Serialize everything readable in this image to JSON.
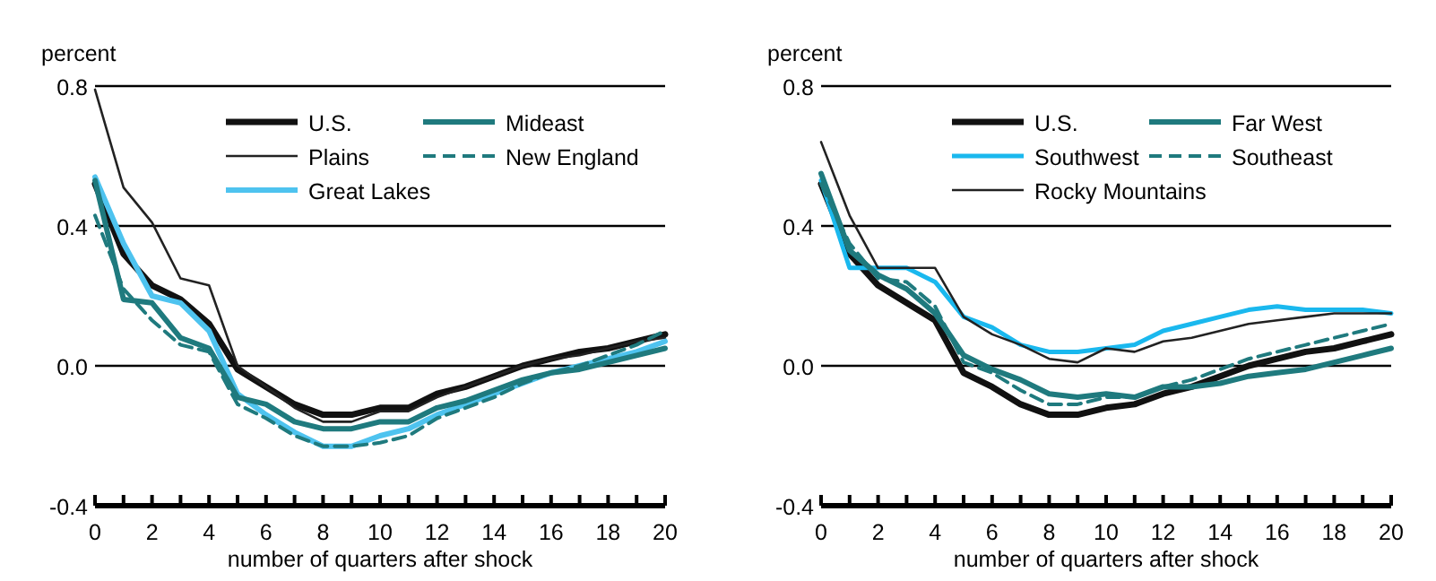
{
  "chart_data": [
    {
      "type": "line",
      "ylabel": "percent",
      "xlabel": "number of quarters after shock",
      "x": [
        0,
        1,
        2,
        3,
        4,
        5,
        6,
        7,
        8,
        9,
        10,
        11,
        12,
        13,
        14,
        15,
        16,
        17,
        18,
        19,
        20
      ],
      "xlim": [
        0,
        20
      ],
      "xticks": [
        0,
        {
          "value": 1,
          "label": null
        },
        2,
        {
          "value": 3,
          "label": null
        },
        4,
        {
          "value": 5,
          "label": null
        },
        6,
        {
          "value": 7,
          "label": null
        },
        8,
        {
          "value": 9,
          "label": null
        },
        10,
        {
          "value": 11,
          "label": null
        },
        12,
        {
          "value": 13,
          "label": null
        },
        14,
        {
          "value": 15,
          "label": null
        },
        16,
        {
          "value": 17,
          "label": null
        },
        18,
        {
          "value": 19,
          "label": null
        },
        20
      ],
      "ylim": [
        -0.4,
        0.8
      ],
      "yticks": [
        {
          "value": -0.4,
          "label": "-0.4"
        },
        {
          "value": 0,
          "label": "0.0"
        },
        {
          "value": 0.4,
          "label": "0.4"
        },
        {
          "value": 0.8,
          "label": "0.8"
        }
      ],
      "grid": "y",
      "legend": "top right",
      "series": [
        {
          "name": "U.S.",
          "color": "#111111",
          "values": [
            0.52,
            0.32,
            0.23,
            0.19,
            0.12,
            -0.01,
            -0.06,
            -0.11,
            -0.14,
            -0.14,
            -0.12,
            -0.12,
            -0.08,
            -0.06,
            -0.03,
            0.0,
            0.02,
            0.04,
            0.05,
            0.07,
            0.09
          ]
        },
        {
          "name": "Plains",
          "color": "#222222",
          "values": [
            0.79,
            0.51,
            0.41,
            0.25,
            0.23,
            0.0,
            -0.06,
            -0.12,
            -0.16,
            -0.16,
            -0.13,
            -0.13,
            -0.09,
            -0.06,
            -0.03,
            0.0,
            0.02,
            0.03,
            0.05,
            0.07,
            0.08
          ]
        },
        {
          "name": "Great Lakes",
          "color": "#4ec3ef",
          "values": [
            0.54,
            0.35,
            0.2,
            0.18,
            0.1,
            -0.08,
            -0.14,
            -0.19,
            -0.23,
            -0.23,
            -0.2,
            -0.18,
            -0.14,
            -0.11,
            -0.08,
            -0.05,
            -0.02,
            0.0,
            0.02,
            0.04,
            0.07
          ]
        },
        {
          "name": "Mideast",
          "color": "#1f7a7e",
          "values": [
            0.53,
            0.19,
            0.18,
            0.08,
            0.05,
            -0.09,
            -0.11,
            -0.16,
            -0.18,
            -0.18,
            -0.16,
            -0.16,
            -0.12,
            -0.1,
            -0.07,
            -0.04,
            -0.02,
            -0.01,
            0.01,
            0.03,
            0.05
          ]
        },
        {
          "name": "New England",
          "color": "#1f7a7e",
          "line_style": "dashed",
          "values": [
            0.43,
            0.22,
            0.13,
            0.06,
            0.04,
            -0.11,
            -0.15,
            -0.2,
            -0.23,
            -0.23,
            -0.22,
            -0.2,
            -0.15,
            -0.12,
            -0.09,
            -0.05,
            -0.02,
            0.0,
            0.03,
            0.06,
            0.1
          ]
        }
      ]
    },
    {
      "type": "line",
      "ylabel": "percent",
      "xlabel": "number of quarters after shock",
      "x": [
        0,
        1,
        2,
        3,
        4,
        5,
        6,
        7,
        8,
        9,
        10,
        11,
        12,
        13,
        14,
        15,
        16,
        17,
        18,
        19,
        20
      ],
      "xlim": [
        0,
        20
      ],
      "xticks": [
        0,
        {
          "value": 1,
          "label": null
        },
        2,
        {
          "value": 3,
          "label": null
        },
        4,
        {
          "value": 5,
          "label": null
        },
        6,
        {
          "value": 7,
          "label": null
        },
        8,
        {
          "value": 9,
          "label": null
        },
        10,
        {
          "value": 11,
          "label": null
        },
        12,
        {
          "value": 13,
          "label": null
        },
        14,
        {
          "value": 15,
          "label": null
        },
        16,
        {
          "value": 17,
          "label": null
        },
        18,
        {
          "value": 19,
          "label": null
        },
        20
      ],
      "ylim": [
        -0.4,
        0.8
      ],
      "yticks": [
        {
          "value": -0.4,
          "label": "-0.4"
        },
        {
          "value": 0,
          "label": "0.0"
        },
        {
          "value": 0.4,
          "label": "0.4"
        },
        {
          "value": 0.8,
          "label": "0.8"
        }
      ],
      "grid": "y",
      "legend": "top right",
      "series": [
        {
          "name": "U.S.",
          "color": "#111111",
          "values": [
            0.52,
            0.32,
            0.23,
            0.18,
            0.13,
            -0.02,
            -0.06,
            -0.11,
            -0.14,
            -0.14,
            -0.12,
            -0.11,
            -0.08,
            -0.06,
            -0.03,
            0.0,
            0.02,
            0.04,
            0.05,
            0.07,
            0.09
          ]
        },
        {
          "name": "Southwest",
          "color": "#1ab8ee",
          "values": [
            0.53,
            0.28,
            0.28,
            0.28,
            0.24,
            0.14,
            0.11,
            0.06,
            0.04,
            0.04,
            0.05,
            0.06,
            0.1,
            0.12,
            0.14,
            0.16,
            0.17,
            0.16,
            0.16,
            0.16,
            0.15
          ]
        },
        {
          "name": "Rocky Mountains",
          "color": "#222222",
          "values": [
            0.64,
            0.43,
            0.28,
            0.28,
            0.28,
            0.14,
            0.09,
            0.06,
            0.02,
            0.01,
            0.05,
            0.04,
            0.07,
            0.08,
            0.1,
            0.12,
            0.13,
            0.14,
            0.15,
            0.15,
            0.15
          ]
        },
        {
          "name": "Far West",
          "color": "#1f7a7e",
          "values": [
            0.55,
            0.33,
            0.26,
            0.22,
            0.15,
            0.03,
            -0.01,
            -0.04,
            -0.08,
            -0.09,
            -0.08,
            -0.09,
            -0.06,
            -0.06,
            -0.05,
            -0.03,
            -0.02,
            -0.01,
            0.01,
            0.03,
            0.05
          ]
        },
        {
          "name": "Southeast",
          "color": "#1f7a7e",
          "line_style": "dashed",
          "values": [
            0.52,
            0.35,
            0.25,
            0.24,
            0.17,
            0.01,
            -0.02,
            -0.07,
            -0.11,
            -0.11,
            -0.09,
            -0.09,
            -0.06,
            -0.04,
            -0.01,
            0.02,
            0.04,
            0.06,
            0.08,
            0.1,
            0.12
          ]
        }
      ]
    }
  ]
}
